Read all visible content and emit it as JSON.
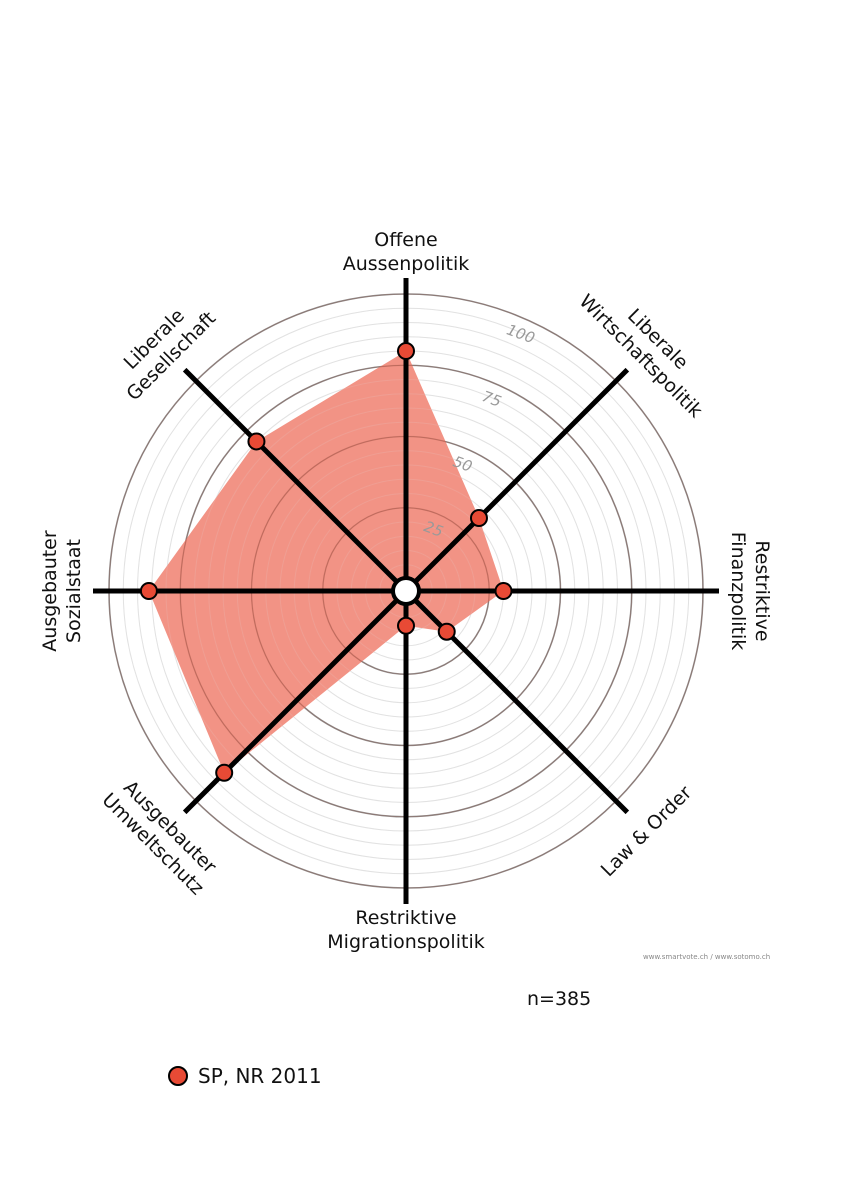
{
  "chart_data": {
    "type": "radar",
    "axes": [
      {
        "label": [
          "Offene",
          "Aussenpolitik"
        ],
        "value": 80
      },
      {
        "label": [
          "Liberale",
          "Wirtschaftspolitik"
        ],
        "value": 32
      },
      {
        "label": [
          "Restriktive",
          "Finanzpolitik"
        ],
        "value": 30
      },
      {
        "label": [
          "Law & Order"
        ],
        "value": 16
      },
      {
        "label": [
          "Restriktive",
          "Migrationspolitik"
        ],
        "value": 8
      },
      {
        "label": [
          "Ausgebauter",
          "Umweltschutz"
        ],
        "value": 86
      },
      {
        "label": [
          "Ausgebauter",
          "Sozialstaat"
        ],
        "value": 86
      },
      {
        "label": [
          "Liberale",
          "Gesellschaft"
        ],
        "value": 70
      }
    ],
    "range": [
      0,
      100
    ],
    "ticks": [
      "25",
      "50",
      "75",
      "100"
    ],
    "series": [
      {
        "name": "SP, NR 2011",
        "color": "#e84a35",
        "fill": "#f08070"
      }
    ],
    "legend_position": "bottom-left"
  },
  "credit": "www.smartvote.ch / www.sotomo.ch",
  "n_label": "n=385"
}
